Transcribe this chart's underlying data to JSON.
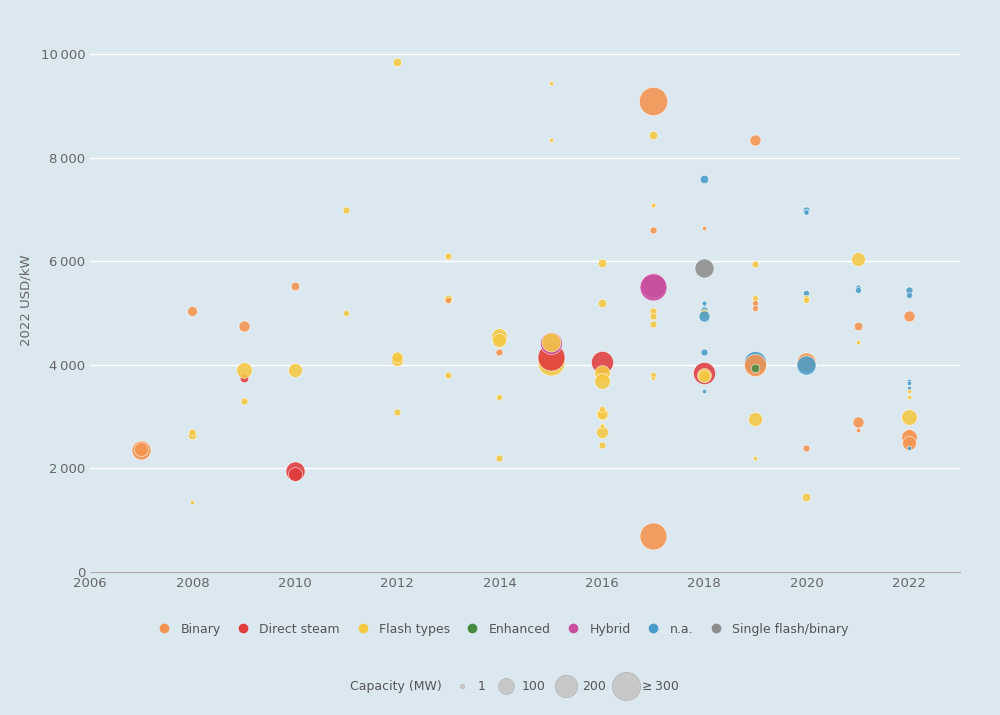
{
  "background_color": "#dce8f0",
  "plot_bg_color": "#dce8f0",
  "ylabel": "2022 USD/kW",
  "ylim": [
    0,
    10500
  ],
  "xlim": [
    2006,
    2023
  ],
  "yticks": [
    0,
    2000,
    4000,
    6000,
    8000,
    10000
  ],
  "xticks": [
    2006,
    2008,
    2010,
    2012,
    2014,
    2016,
    2018,
    2020,
    2022
  ],
  "colors": {
    "Binary": "#F4934E",
    "Direct steam": "#E03C3C",
    "Flash types": "#F5C842",
    "Enhanced": "#4A8C3F",
    "Hybrid": "#C94E9E",
    "n.a.": "#4A9CC9",
    "Single flash/binary": "#8C8C8C"
  },
  "points": [
    {
      "year": 2007,
      "cost": 2350,
      "cap": 150,
      "type": "Binary"
    },
    {
      "year": 2007,
      "cost": 2380,
      "cap": 80,
      "type": "Binary"
    },
    {
      "year": 2008,
      "cost": 2650,
      "cap": 30,
      "type": "Flash types"
    },
    {
      "year": 2008,
      "cost": 2700,
      "cap": 20,
      "type": "Flash types"
    },
    {
      "year": 2008,
      "cost": 5050,
      "cap": 40,
      "type": "Binary"
    },
    {
      "year": 2008,
      "cost": 1350,
      "cap": 8,
      "type": "Flash types"
    },
    {
      "year": 2009,
      "cost": 4750,
      "cap": 50,
      "type": "Binary"
    },
    {
      "year": 2009,
      "cost": 3750,
      "cap": 30,
      "type": "Direct steam"
    },
    {
      "year": 2009,
      "cost": 3900,
      "cap": 100,
      "type": "Flash types"
    },
    {
      "year": 2009,
      "cost": 3300,
      "cap": 20,
      "type": "Flash types"
    },
    {
      "year": 2010,
      "cost": 1950,
      "cap": 150,
      "type": "Direct steam"
    },
    {
      "year": 2010,
      "cost": 1900,
      "cap": 80,
      "type": "Direct steam"
    },
    {
      "year": 2010,
      "cost": 3900,
      "cap": 80,
      "type": "Flash types"
    },
    {
      "year": 2010,
      "cost": 5530,
      "cap": 30,
      "type": "Binary"
    },
    {
      "year": 2011,
      "cost": 7000,
      "cap": 20,
      "type": "Flash types"
    },
    {
      "year": 2011,
      "cost": 5000,
      "cap": 15,
      "type": "Flash types"
    },
    {
      "year": 2012,
      "cost": 4100,
      "cap": 60,
      "type": "Flash types"
    },
    {
      "year": 2012,
      "cost": 4150,
      "cap": 50,
      "type": "Flash types"
    },
    {
      "year": 2012,
      "cost": 3100,
      "cap": 20,
      "type": "Flash types"
    },
    {
      "year": 2012,
      "cost": 9850,
      "cap": 30,
      "type": "Flash types"
    },
    {
      "year": 2013,
      "cost": 5280,
      "cap": 30,
      "type": "Flash types"
    },
    {
      "year": 2013,
      "cost": 6100,
      "cap": 20,
      "type": "Flash types"
    },
    {
      "year": 2013,
      "cost": 5250,
      "cap": 15,
      "type": "Binary"
    },
    {
      "year": 2013,
      "cost": 3800,
      "cap": 20,
      "type": "Flash types"
    },
    {
      "year": 2014,
      "cost": 4560,
      "cap": 100,
      "type": "Flash types"
    },
    {
      "year": 2014,
      "cost": 4480,
      "cap": 80,
      "type": "Flash types"
    },
    {
      "year": 2014,
      "cost": 4250,
      "cap": 20,
      "type": "Binary"
    },
    {
      "year": 2014,
      "cost": 3380,
      "cap": 15,
      "type": "Flash types"
    },
    {
      "year": 2014,
      "cost": 2200,
      "cap": 20,
      "type": "Flash types"
    },
    {
      "year": 2015,
      "cost": 4050,
      "cap": 300,
      "type": "Flash types"
    },
    {
      "year": 2015,
      "cost": 4150,
      "cap": 300,
      "type": "Direct steam"
    },
    {
      "year": 2015,
      "cost": 4420,
      "cap": 200,
      "type": "Hybrid"
    },
    {
      "year": 2015,
      "cost": 4450,
      "cap": 150,
      "type": "Flash types"
    },
    {
      "year": 2015,
      "cost": 9450,
      "cap": 8,
      "type": "Flash types"
    },
    {
      "year": 2015,
      "cost": 8350,
      "cap": 8,
      "type": "Flash types"
    },
    {
      "year": 2016,
      "cost": 5980,
      "cap": 30,
      "type": "Flash types"
    },
    {
      "year": 2016,
      "cost": 4050,
      "cap": 200,
      "type": "Direct steam"
    },
    {
      "year": 2016,
      "cost": 3850,
      "cap": 100,
      "type": "Flash types"
    },
    {
      "year": 2016,
      "cost": 3700,
      "cap": 100,
      "type": "Flash types"
    },
    {
      "year": 2016,
      "cost": 3050,
      "cap": 60,
      "type": "Flash types"
    },
    {
      "year": 2016,
      "cost": 3050,
      "cap": 40,
      "type": "Flash types"
    },
    {
      "year": 2016,
      "cost": 2700,
      "cap": 60,
      "type": "Flash types"
    },
    {
      "year": 2016,
      "cost": 2450,
      "cap": 20,
      "type": "Flash types"
    },
    {
      "year": 2016,
      "cost": 5200,
      "cap": 30,
      "type": "Flash types"
    },
    {
      "year": 2016,
      "cost": 3150,
      "cap": 15,
      "type": "Flash types"
    },
    {
      "year": 2016,
      "cost": 2850,
      "cap": 8,
      "type": "Flash types"
    },
    {
      "year": 2016,
      "cost": 2820,
      "cap": 8,
      "type": "Flash types"
    },
    {
      "year": 2017,
      "cost": 9100,
      "cap": 330,
      "type": "Binary"
    },
    {
      "year": 2017,
      "cost": 8450,
      "cap": 30,
      "type": "Flash types"
    },
    {
      "year": 2017,
      "cost": 7100,
      "cap": 10,
      "type": "Flash types"
    },
    {
      "year": 2017,
      "cost": 6600,
      "cap": 20,
      "type": "Binary"
    },
    {
      "year": 2017,
      "cost": 5550,
      "cap": 250,
      "type": "Hybrid"
    },
    {
      "year": 2017,
      "cost": 5500,
      "cap": 300,
      "type": "Hybrid"
    },
    {
      "year": 2017,
      "cost": 5050,
      "cap": 20,
      "type": "Flash types"
    },
    {
      "year": 2017,
      "cost": 4950,
      "cap": 20,
      "type": "Flash types"
    },
    {
      "year": 2017,
      "cost": 4800,
      "cap": 20,
      "type": "Flash types"
    },
    {
      "year": 2017,
      "cost": 700,
      "cap": 300,
      "type": "Binary"
    },
    {
      "year": 2017,
      "cost": 3800,
      "cap": 15,
      "type": "Flash types"
    },
    {
      "year": 2017,
      "cost": 3750,
      "cap": 8,
      "type": "Flash types"
    },
    {
      "year": 2018,
      "cost": 7600,
      "cap": 30,
      "type": "n.a."
    },
    {
      "year": 2018,
      "cost": 6650,
      "cap": 8,
      "type": "Binary"
    },
    {
      "year": 2018,
      "cost": 5880,
      "cap": 150,
      "type": "Single flash/binary"
    },
    {
      "year": 2018,
      "cost": 5200,
      "cap": 10,
      "type": "n.a."
    },
    {
      "year": 2018,
      "cost": 5100,
      "cap": 10,
      "type": "n.a."
    },
    {
      "year": 2018,
      "cost": 5050,
      "cap": 30,
      "type": "n.a."
    },
    {
      "year": 2018,
      "cost": 5000,
      "cap": 30,
      "type": "Flash types"
    },
    {
      "year": 2018,
      "cost": 4950,
      "cap": 50,
      "type": "n.a."
    },
    {
      "year": 2018,
      "cost": 3850,
      "cap": 200,
      "type": "Direct steam"
    },
    {
      "year": 2018,
      "cost": 3800,
      "cap": 80,
      "type": "Flash types"
    },
    {
      "year": 2018,
      "cost": 3780,
      "cap": 60,
      "type": "Flash types"
    },
    {
      "year": 2018,
      "cost": 4250,
      "cap": 20,
      "type": "n.a."
    },
    {
      "year": 2018,
      "cost": 3500,
      "cap": 8,
      "type": "n.a."
    },
    {
      "year": 2019,
      "cost": 8350,
      "cap": 50,
      "type": "Binary"
    },
    {
      "year": 2019,
      "cost": 5950,
      "cap": 20,
      "type": "Flash types"
    },
    {
      "year": 2019,
      "cost": 5300,
      "cap": 15,
      "type": "Flash types"
    },
    {
      "year": 2019,
      "cost": 5200,
      "cap": 15,
      "type": "Binary"
    },
    {
      "year": 2019,
      "cost": 5100,
      "cap": 15,
      "type": "Binary"
    },
    {
      "year": 2019,
      "cost": 4050,
      "cap": 200,
      "type": "n.a."
    },
    {
      "year": 2019,
      "cost": 4000,
      "cap": 200,
      "type": "Binary"
    },
    {
      "year": 2019,
      "cost": 3950,
      "cap": 30,
      "type": "Enhanced"
    },
    {
      "year": 2019,
      "cost": 2950,
      "cap": 80,
      "type": "Flash types"
    },
    {
      "year": 2019,
      "cost": 2200,
      "cap": 8,
      "type": "Flash types"
    },
    {
      "year": 2020,
      "cost": 7000,
      "cap": 20,
      "type": "n.a."
    },
    {
      "year": 2020,
      "cost": 6950,
      "cap": 15,
      "type": "n.a."
    },
    {
      "year": 2020,
      "cost": 6950,
      "cap": 10,
      "type": "n.a."
    },
    {
      "year": 2020,
      "cost": 5400,
      "cap": 15,
      "type": "n.a."
    },
    {
      "year": 2020,
      "cost": 5300,
      "cap": 15,
      "type": "Flash types"
    },
    {
      "year": 2020,
      "cost": 5250,
      "cap": 15,
      "type": "Flash types"
    },
    {
      "year": 2020,
      "cost": 4200,
      "cap": 8,
      "type": "Flash types"
    },
    {
      "year": 2020,
      "cost": 4150,
      "cap": 8,
      "type": "Flash types"
    },
    {
      "year": 2020,
      "cost": 4050,
      "cap": 150,
      "type": "Binary"
    },
    {
      "year": 2020,
      "cost": 4000,
      "cap": 150,
      "type": "n.a."
    },
    {
      "year": 2020,
      "cost": 2400,
      "cap": 20,
      "type": "Binary"
    },
    {
      "year": 2020,
      "cost": 1450,
      "cap": 30,
      "type": "Flash types"
    },
    {
      "year": 2021,
      "cost": 6050,
      "cap": 80,
      "type": "Flash types"
    },
    {
      "year": 2021,
      "cost": 5500,
      "cap": 10,
      "type": "n.a."
    },
    {
      "year": 2021,
      "cost": 5450,
      "cap": 15,
      "type": "n.a."
    },
    {
      "year": 2021,
      "cost": 4750,
      "cap": 30,
      "type": "Binary"
    },
    {
      "year": 2021,
      "cost": 4450,
      "cap": 8,
      "type": "Flash types"
    },
    {
      "year": 2021,
      "cost": 2900,
      "cap": 50,
      "type": "Binary"
    },
    {
      "year": 2021,
      "cost": 2750,
      "cap": 8,
      "type": "Binary"
    },
    {
      "year": 2022,
      "cost": 4950,
      "cap": 50,
      "type": "Binary"
    },
    {
      "year": 2022,
      "cost": 5450,
      "cap": 20,
      "type": "n.a."
    },
    {
      "year": 2022,
      "cost": 5350,
      "cap": 15,
      "type": "n.a."
    },
    {
      "year": 2022,
      "cost": 3700,
      "cap": 8,
      "type": "n.a."
    },
    {
      "year": 2022,
      "cost": 3650,
      "cap": 8,
      "type": "n.a."
    },
    {
      "year": 2022,
      "cost": 3550,
      "cap": 8,
      "type": "n.a."
    },
    {
      "year": 2022,
      "cost": 3500,
      "cap": 8,
      "type": "Flash types"
    },
    {
      "year": 2022,
      "cost": 3000,
      "cap": 100,
      "type": "Flash types"
    },
    {
      "year": 2022,
      "cost": 2700,
      "cap": 15,
      "type": "Binary"
    },
    {
      "year": 2022,
      "cost": 2600,
      "cap": 100,
      "type": "Binary"
    },
    {
      "year": 2022,
      "cost": 2500,
      "cap": 80,
      "type": "Binary"
    },
    {
      "year": 2022,
      "cost": 2400,
      "cap": 8,
      "type": "n.a."
    },
    {
      "year": 2022,
      "cost": 3380,
      "cap": 8,
      "type": "Flash types"
    }
  ],
  "legend_types": [
    "Binary",
    "Direct steam",
    "Flash types",
    "Enhanced",
    "Hybrid",
    "n.a.",
    "Single flash/binary"
  ],
  "size_legend": [
    {
      "label": "1",
      "cap": 1
    },
    {
      "label": "100",
      "cap": 100
    },
    {
      "label": "200",
      "cap": 200
    },
    {
      "label": "≥ 300",
      "cap": 320
    }
  ]
}
